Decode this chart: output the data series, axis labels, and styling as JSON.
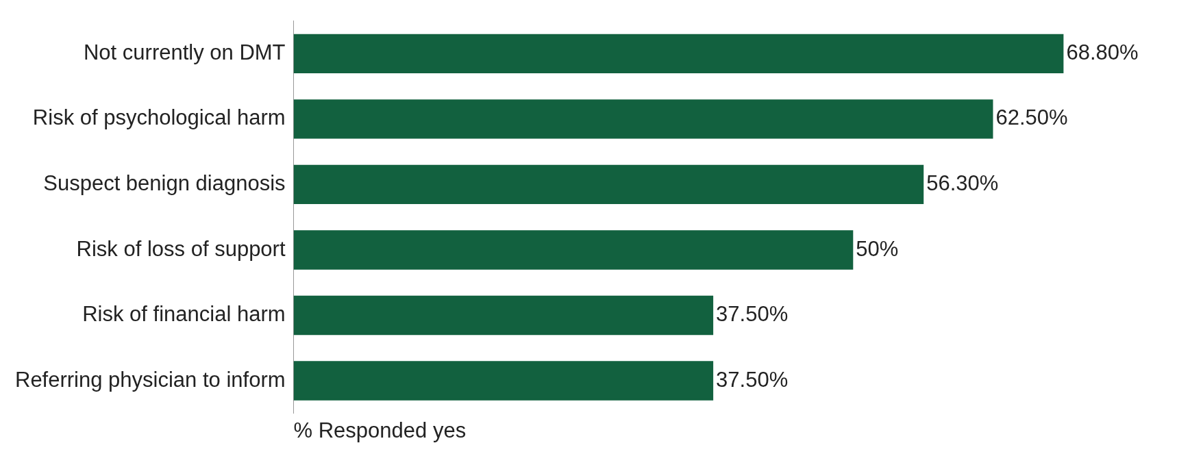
{
  "chart_data": {
    "type": "bar",
    "orientation": "horizontal",
    "xlabel": "% Responded yes",
    "categories": [
      "Not currently on DMT",
      "Risk of psychological harm",
      "Suspect benign diagnosis",
      "Risk of loss of support",
      "Risk of financial harm",
      "Referring physician to inform"
    ],
    "values": [
      68.8,
      62.5,
      56.3,
      50,
      37.5,
      37.5
    ],
    "value_labels": [
      "68.80%",
      "62.50%",
      "56.30%",
      "50%",
      "37.50%",
      "37.50%"
    ],
    "color": "#12613f",
    "grid": false,
    "legend": false
  }
}
